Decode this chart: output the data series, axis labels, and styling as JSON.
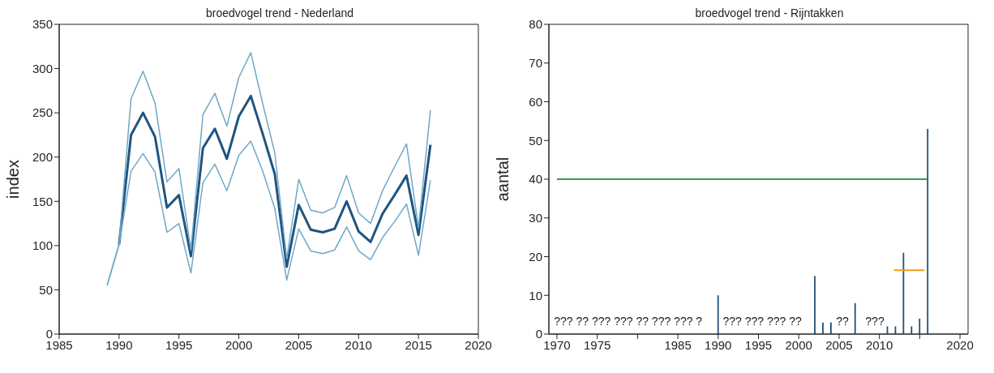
{
  "chart_data": [
    {
      "type": "line",
      "title": "broedvogel trend - Nederland",
      "ylabel": "index",
      "xlim": [
        1985,
        2020
      ],
      "xticks": [
        1985,
        1990,
        1995,
        2000,
        2005,
        2010,
        2015,
        2020
      ],
      "ylim": [
        0,
        350
      ],
      "yticks": [
        0,
        50,
        100,
        150,
        200,
        250,
        300,
        350
      ],
      "grid": false,
      "legend": false,
      "marker": "none",
      "line_style": "solid",
      "series": [
        {
          "color": "#1f5480",
          "x": [
            1990,
            1991,
            1992,
            1993,
            1994,
            1995,
            1996,
            1997,
            1998,
            1999,
            2000,
            2001,
            2002,
            2003,
            2004,
            2005,
            2006,
            2007,
            2008,
            2009,
            2010,
            2011,
            2012,
            2013,
            2014,
            2015,
            2016
          ],
          "values": [
            101,
            225,
            250,
            223,
            143,
            157,
            88,
            210,
            232,
            198,
            246,
            269,
            226,
            181,
            76,
            146,
            118,
            115,
            119,
            150,
            116,
            104,
            136,
            157,
            179,
            112,
            214
          ]
        },
        {
          "color": "#6fa8c8",
          "x": [
            1989,
            1990,
            1991,
            1992,
            1993,
            1994,
            1995,
            1996,
            1997,
            1998,
            1999,
            2000,
            2001,
            2002,
            2003,
            2004,
            2005,
            2006,
            2007,
            2008,
            2009,
            2010,
            2011,
            2012,
            2013,
            2014,
            2015,
            2016
          ],
          "values": [
            55,
            101,
            266,
            297,
            261,
            172,
            187,
            95,
            248,
            272,
            235,
            290,
            318,
            260,
            205,
            85,
            175,
            140,
            137,
            143,
            179,
            137,
            125,
            162,
            189,
            215,
            120,
            253
          ]
        },
        {
          "color": "#6fa8c8",
          "x": [
            1989,
            1990,
            1991,
            1992,
            1993,
            1994,
            1995,
            1996,
            1997,
            1998,
            1999,
            2000,
            2001,
            2002,
            2003,
            2004,
            2005,
            2006,
            2007,
            2008,
            2009,
            2010,
            2011,
            2012,
            2013,
            2014,
            2015,
            2016
          ],
          "values": [
            55,
            101,
            184,
            204,
            183,
            115,
            125,
            69,
            171,
            192,
            162,
            202,
            218,
            184,
            142,
            61,
            119,
            94,
            91,
            95,
            121,
            94,
            84,
            109,
            127,
            147,
            89,
            174
          ]
        }
      ]
    },
    {
      "type": "bar",
      "title": "broedvogel trend - Rijntakken",
      "ylabel": "aantal",
      "xlim": [
        1969,
        2021
      ],
      "xticks": [
        1970,
        1975,
        {
          "value": 1980,
          "label": null
        },
        1985,
        1990,
        1995,
        2000,
        2005,
        2010,
        {
          "value": 2015,
          "label": null
        },
        2020
      ],
      "ylim": [
        0,
        80
      ],
      "yticks": [
        0,
        10,
        20,
        30,
        40,
        50,
        60,
        70,
        80
      ],
      "grid": false,
      "legend": false,
      "series": [
        {
          "type": "bar",
          "color": "#1f4e79",
          "x": [
            1990,
            2002,
            2003,
            2004,
            2007,
            2011,
            2012,
            2013,
            2014,
            2015,
            2016
          ],
          "values": [
            10,
            15,
            3,
            3,
            8,
            2,
            2,
            21,
            2,
            4,
            53
          ]
        },
        {
          "type": "line",
          "color": "#2e9e5b",
          "x": [
            1970,
            2016
          ],
          "values": [
            40,
            40
          ]
        },
        {
          "type": "line",
          "color": "#f39c12",
          "x": [
            2011.8,
            2015.6
          ],
          "values": [
            16.5,
            16.5
          ]
        }
      ],
      "annotations": [
        "??? ?? ??? ??? ?? ??? ??? ?",
        "??? ??? ??? ??",
        "??",
        "???"
      ]
    }
  ]
}
